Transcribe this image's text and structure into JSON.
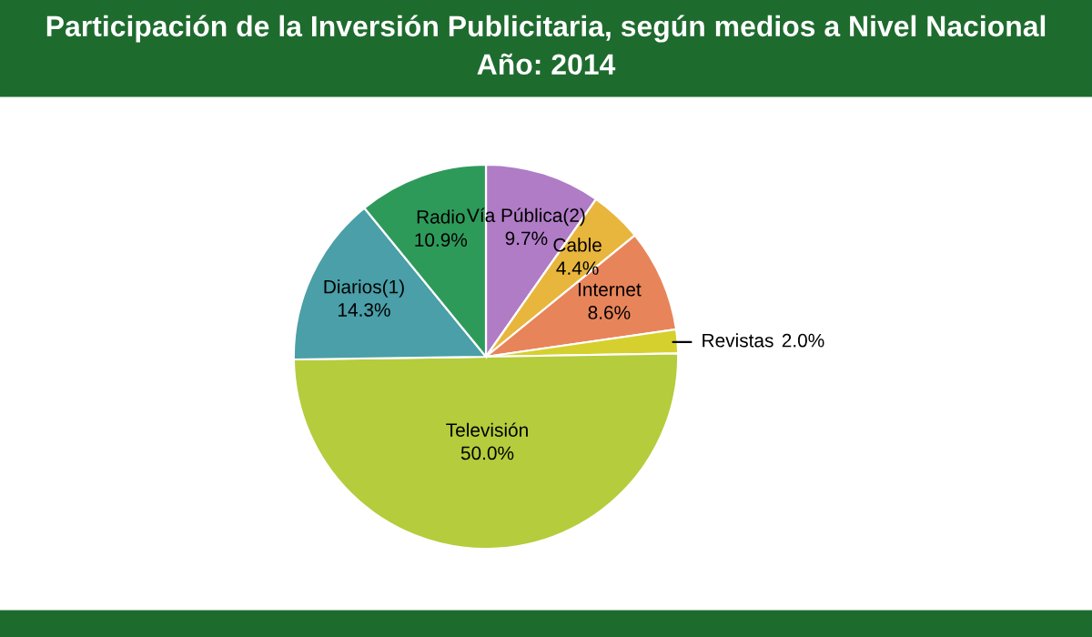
{
  "chart_data": {
    "type": "pie",
    "title": "Participación de la Inversión Publicitaria, según medios a Nivel Nacional",
    "subtitle": "Año: 2014",
    "categories": [
      "Vía Pública(2)",
      "Cable",
      "Internet",
      "Revistas",
      "Televisión",
      "Diarios(1)",
      "Radio"
    ],
    "values": [
      9.7,
      4.4,
      8.6,
      2.0,
      50.0,
      14.3,
      10.9
    ],
    "colors": [
      "#b07cc6",
      "#e8b63c",
      "#e8845a",
      "#d6d02e",
      "#b5cc3c",
      "#4a9fa8",
      "#2e9a5a"
    ],
    "value_labels": [
      "9.7%",
      "4.4%",
      "8.6%",
      "2.0%",
      "50.0%",
      "14.3%",
      "10.9%"
    ],
    "legend": false
  }
}
